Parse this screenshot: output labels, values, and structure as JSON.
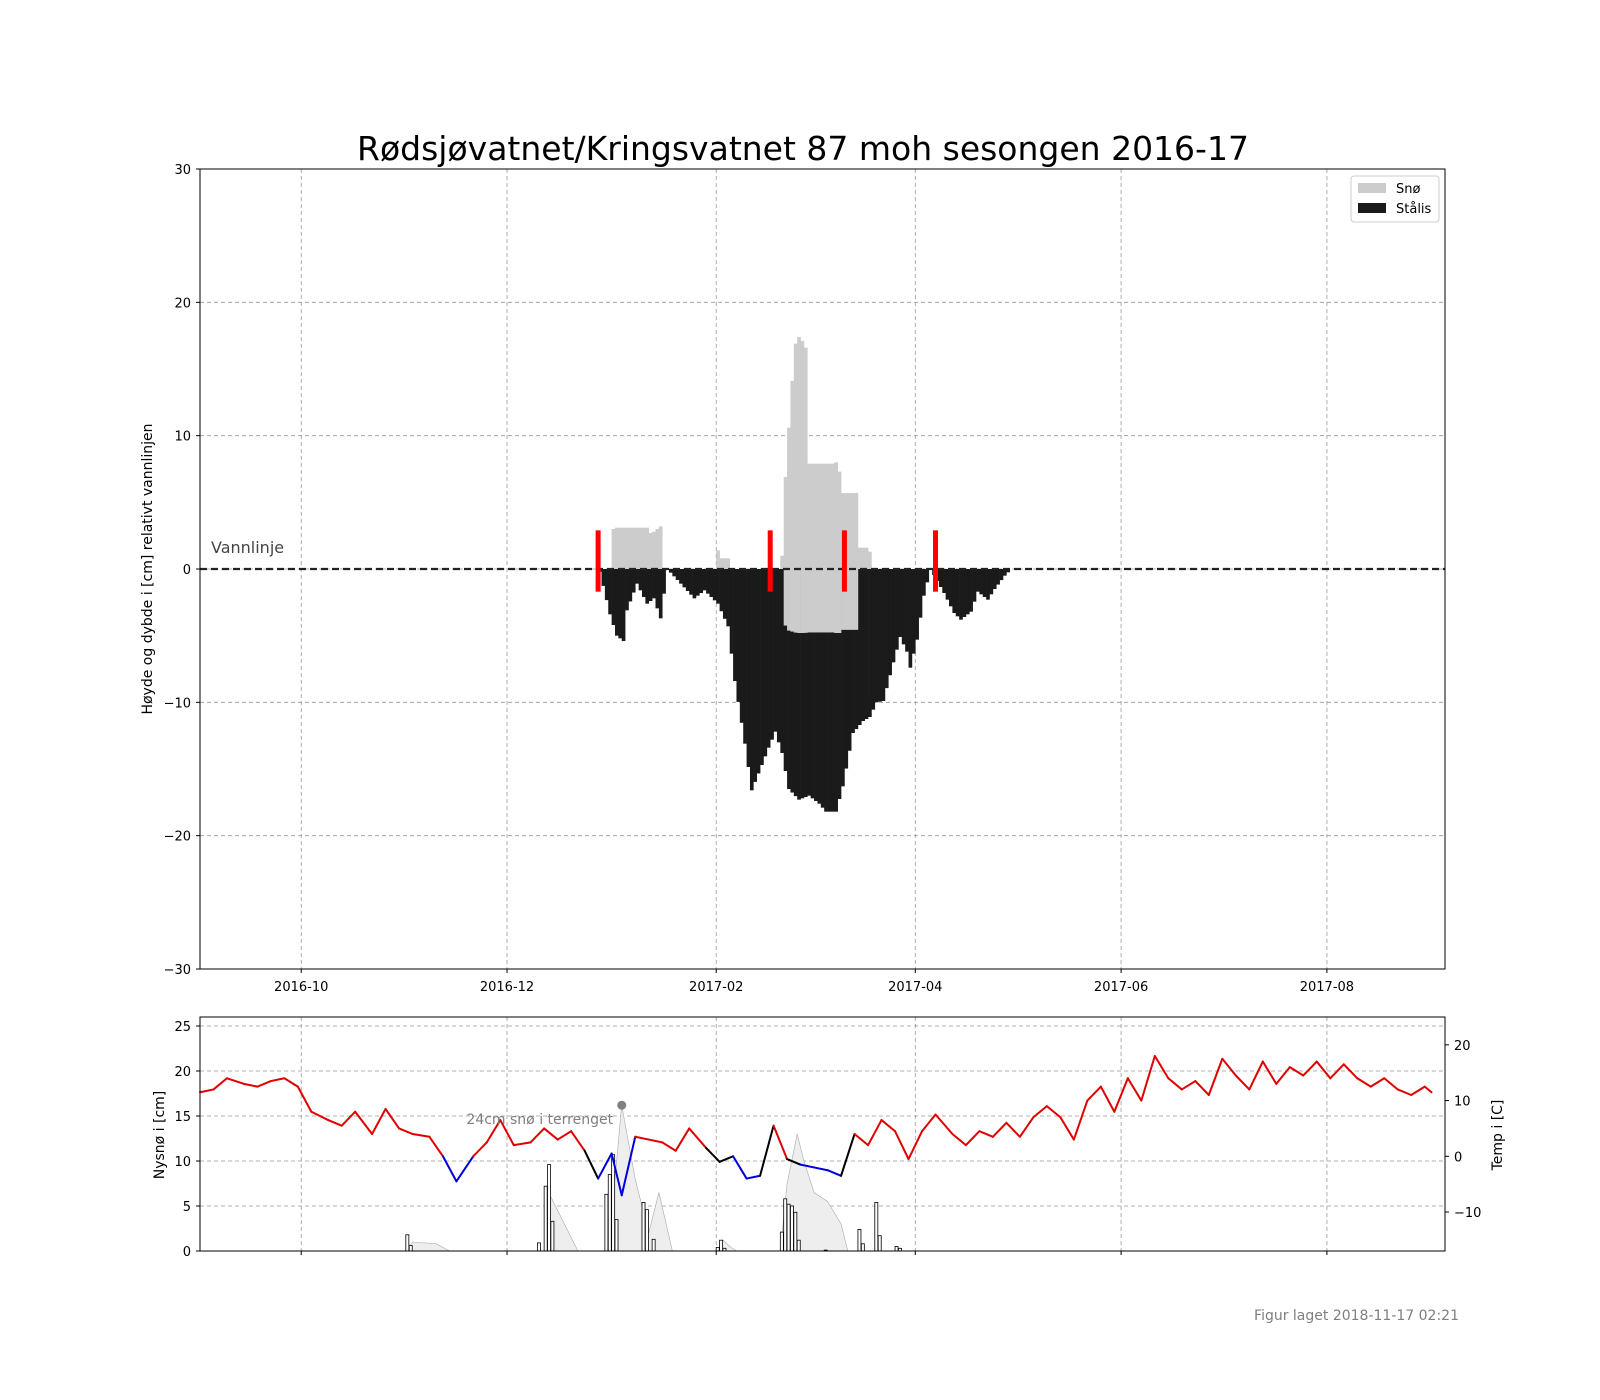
{
  "title": "Rødsjøvatnet/Kringsvatnet 87 moh sesongen 2016-17",
  "footer": "Figur laget 2018-11-17 02:21",
  "colors": {
    "snow": "#cccccc",
    "ice": "#1a1a1a",
    "obs": "#ff0000",
    "temp_warm": "#e00000",
    "temp_cold": "#0000dd",
    "temp_neutral": "#000000",
    "grid": "#999999"
  },
  "chart_data": [
    {
      "type": "bar",
      "ylabel": "Høyde og dybde i [cm] relativt vannlinjen",
      "ylim": [
        -30,
        30
      ],
      "yticks": [
        -30,
        -20,
        -10,
        0,
        10,
        20,
        30
      ],
      "ytick_labels": [
        "−30",
        "−20",
        "−10",
        "0",
        "10",
        "20",
        "30"
      ],
      "xlim": [
        "2016-09-01",
        "2017-09-05"
      ],
      "xticks": [
        "2016-10-01",
        "2016-12-01",
        "2017-02-01",
        "2017-04-01",
        "2017-06-01",
        "2017-08-01"
      ],
      "xtick_labels": [
        "2016-10",
        "2016-12",
        "2017-02",
        "2017-04",
        "2017-06",
        "2017-08"
      ],
      "grid": true,
      "legend_position": "top-right",
      "legend": [
        "Snø",
        "Stålis"
      ],
      "waterline_label": "Vannlinje",
      "observation_dates": [
        "2016-12-28",
        "2017-02-17",
        "2017-03-11",
        "2017-04-07"
      ],
      "observation_range": [
        -1.7,
        2.9
      ],
      "snow_cm": [
        [
          "2017-01-01",
          3.0
        ],
        [
          "2017-01-02",
          3.1
        ],
        [
          "2017-01-03",
          3.1
        ],
        [
          "2017-01-04",
          3.1
        ],
        [
          "2017-01-12",
          2.7
        ],
        [
          "2017-01-13",
          2.8
        ],
        [
          "2017-01-14",
          3.0
        ],
        [
          "2017-01-15",
          3.2
        ],
        [
          "2017-02-01",
          1.4
        ],
        [
          "2017-02-02",
          0.8
        ],
        [
          "2017-02-03",
          0.8
        ],
        [
          "2017-02-04",
          0.8
        ],
        [
          "2017-02-20",
          1.0
        ],
        [
          "2017-02-21",
          6.9
        ],
        [
          "2017-02-22",
          10.6
        ],
        [
          "2017-02-23",
          14.1
        ],
        [
          "2017-02-24",
          16.9
        ],
        [
          "2017-02-25",
          17.4
        ],
        [
          "2017-02-26",
          17.1
        ],
        [
          "2017-02-27",
          16.6
        ],
        [
          "2017-02-28",
          7.9
        ],
        [
          "2017-03-08",
          8.0
        ],
        [
          "2017-03-09",
          7.3
        ],
        [
          "2017-03-10",
          5.7
        ],
        [
          "2017-03-15",
          1.6
        ],
        [
          "2017-03-18",
          1.3
        ]
      ],
      "ice_cm": [
        [
          "2016-12-28",
          0.2
        ],
        [
          "2016-12-31",
          3.4
        ],
        [
          "2017-01-02",
          5.0
        ],
        [
          "2017-01-04",
          5.4
        ],
        [
          "2017-01-05",
          3.1
        ],
        [
          "2017-01-08",
          1.1
        ],
        [
          "2017-01-11",
          2.6
        ],
        [
          "2017-01-13",
          2.2
        ],
        [
          "2017-01-15",
          3.7
        ],
        [
          "2017-01-17",
          0.0
        ],
        [
          "2017-01-25",
          2.2
        ],
        [
          "2017-01-28",
          1.6
        ],
        [
          "2017-02-01",
          2.6
        ],
        [
          "2017-02-04",
          4.3
        ],
        [
          "2017-02-06",
          8.4
        ],
        [
          "2017-02-09",
          13.1
        ],
        [
          "2017-02-11",
          16.6
        ],
        [
          "2017-02-14",
          14.7
        ],
        [
          "2017-02-16",
          13.4
        ],
        [
          "2017-02-18",
          12.2
        ],
        [
          "2017-02-20",
          13.8
        ],
        [
          "2017-02-22",
          16.5
        ],
        [
          "2017-02-25",
          17.3
        ],
        [
          "2017-02-28",
          17.0
        ],
        [
          "2017-03-03",
          17.6
        ],
        [
          "2017-03-05",
          18.2
        ],
        [
          "2017-03-08",
          18.2
        ],
        [
          "2017-03-10",
          16.3
        ],
        [
          "2017-03-13",
          12.3
        ],
        [
          "2017-03-16",
          11.4
        ],
        [
          "2017-03-18",
          11.1
        ],
        [
          "2017-03-20",
          10.0
        ],
        [
          "2017-03-22",
          9.9
        ],
        [
          "2017-03-25",
          7.0
        ],
        [
          "2017-03-27",
          5.1
        ],
        [
          "2017-03-29",
          6.2
        ],
        [
          "2017-03-30",
          7.4
        ],
        [
          "2017-04-01",
          5.3
        ],
        [
          "2017-04-03",
          2.0
        ],
        [
          "2017-04-05",
          0.0
        ],
        [
          "2017-04-09",
          1.8
        ],
        [
          "2017-04-12",
          3.3
        ],
        [
          "2017-04-14",
          3.8
        ],
        [
          "2017-04-17",
          3.2
        ],
        [
          "2017-04-19",
          1.7
        ],
        [
          "2017-04-22",
          2.3
        ],
        [
          "2017-04-24",
          1.5
        ],
        [
          "2017-04-27",
          0.5
        ],
        [
          "2017-04-29",
          0.0
        ]
      ]
    },
    {
      "type": "bar",
      "ylabel": "Nysnø i [cm]",
      "ylabel_right": "Temp i [C]",
      "ylim": [
        0,
        26
      ],
      "yticks": [
        0,
        5,
        10,
        15,
        20,
        25
      ],
      "ytick_labels": [
        "0",
        "5",
        "10",
        "15",
        "20",
        "25"
      ],
      "ylim_right": [
        -17,
        25
      ],
      "yticks_right": [
        -10,
        0,
        10,
        20
      ],
      "ytick_labels_right": [
        "−10",
        "0",
        "10",
        "20"
      ],
      "grid": true,
      "annotation": "24cm snø i terrenget",
      "annotation_date": "2017-01-04",
      "annotation_value": 16.2,
      "new_snow_cm": [
        [
          "2016-11-01",
          1.8
        ],
        [
          "2016-11-02",
          0.6
        ],
        [
          "2016-12-10",
          0.9
        ],
        [
          "2016-12-12",
          7.2
        ],
        [
          "2016-12-13",
          9.6
        ],
        [
          "2016-12-14",
          3.3
        ],
        [
          "2016-12-30",
          6.3
        ],
        [
          "2016-12-31",
          8.5
        ],
        [
          "2017-01-01",
          10.7
        ],
        [
          "2017-01-02",
          3.5
        ],
        [
          "2017-01-10",
          5.4
        ],
        [
          "2017-01-11",
          4.6
        ],
        [
          "2017-01-13",
          1.3
        ],
        [
          "2017-02-01",
          0.4
        ],
        [
          "2017-02-02",
          1.2
        ],
        [
          "2017-02-03",
          0.3
        ],
        [
          "2017-02-20",
          2.1
        ],
        [
          "2017-02-21",
          5.8
        ],
        [
          "2017-02-22",
          5.2
        ],
        [
          "2017-02-23",
          5.0
        ],
        [
          "2017-02-24",
          4.3
        ],
        [
          "2017-02-25",
          1.2
        ],
        [
          "2017-03-05",
          0.1
        ],
        [
          "2017-03-15",
          2.4
        ],
        [
          "2017-03-16",
          0.8
        ],
        [
          "2017-03-20",
          5.4
        ],
        [
          "2017-03-21",
          1.7
        ],
        [
          "2017-03-26",
          0.5
        ],
        [
          "2017-03-27",
          0.3
        ]
      ],
      "snow_depth_cm": [
        [
          "2016-11-01",
          0.0
        ],
        [
          "2016-11-03",
          1.0
        ],
        [
          "2016-11-10",
          0.8
        ],
        [
          "2016-11-14",
          0.0
        ],
        [
          "2016-12-12",
          0.0
        ],
        [
          "2016-12-14",
          6.0
        ],
        [
          "2016-12-18",
          3.0
        ],
        [
          "2016-12-22",
          0.0
        ],
        [
          "2016-12-30",
          0.0
        ],
        [
          "2017-01-02",
          8.0
        ],
        [
          "2017-01-04",
          16.2
        ],
        [
          "2017-01-08",
          8.0
        ],
        [
          "2017-01-12",
          2.0
        ],
        [
          "2017-01-15",
          6.5
        ],
        [
          "2017-01-19",
          0.0
        ],
        [
          "2017-02-02",
          0.0
        ],
        [
          "2017-02-03",
          1.2
        ],
        [
          "2017-02-05",
          0.5
        ],
        [
          "2017-02-07",
          0.0
        ],
        [
          "2017-02-20",
          0.0
        ],
        [
          "2017-02-22",
          7.5
        ],
        [
          "2017-02-25",
          13.0
        ],
        [
          "2017-02-27",
          10.0
        ],
        [
          "2017-03-02",
          6.5
        ],
        [
          "2017-03-06",
          5.5
        ],
        [
          "2017-03-10",
          3.0
        ],
        [
          "2017-03-12",
          0.0
        ]
      ],
      "temperature_c": [
        [
          "2016-09-01",
          11.5
        ],
        [
          "2016-09-05",
          12.0
        ],
        [
          "2016-09-09",
          14.0
        ],
        [
          "2016-09-14",
          13.0
        ],
        [
          "2016-09-18",
          12.5
        ],
        [
          "2016-09-22",
          13.5
        ],
        [
          "2016-09-26",
          14.0
        ],
        [
          "2016-09-30",
          12.5
        ],
        [
          "2016-10-04",
          8.0
        ],
        [
          "2016-10-09",
          6.5
        ],
        [
          "2016-10-13",
          5.5
        ],
        [
          "2016-10-17",
          8.0
        ],
        [
          "2016-10-22",
          4.0
        ],
        [
          "2016-10-26",
          8.5
        ],
        [
          "2016-10-30",
          5.0
        ],
        [
          "2016-11-03",
          4.0
        ],
        [
          "2016-11-08",
          3.5
        ],
        [
          "2016-11-12",
          0.0
        ],
        [
          "2016-11-16",
          -4.5
        ],
        [
          "2016-11-21",
          0.0
        ],
        [
          "2016-11-25",
          2.5
        ],
        [
          "2016-11-29",
          6.5
        ],
        [
          "2016-12-03",
          2.0
        ],
        [
          "2016-12-08",
          2.5
        ],
        [
          "2016-12-12",
          5.0
        ],
        [
          "2016-12-16",
          3.0
        ],
        [
          "2016-12-20",
          4.5
        ],
        [
          "2016-12-24",
          1.0
        ],
        [
          "2016-12-28",
          -4.0
        ],
        [
          "2017-01-01",
          0.5
        ],
        [
          "2017-01-04",
          -7.0
        ],
        [
          "2017-01-08",
          3.5
        ],
        [
          "2017-01-12",
          3.0
        ],
        [
          "2017-01-16",
          2.5
        ],
        [
          "2017-01-20",
          1.0
        ],
        [
          "2017-01-24",
          5.0
        ],
        [
          "2017-01-29",
          1.5
        ],
        [
          "2017-02-02",
          -1.0
        ],
        [
          "2017-02-06",
          0.0
        ],
        [
          "2017-02-10",
          -4.0
        ],
        [
          "2017-02-14",
          -3.5
        ],
        [
          "2017-02-18",
          5.5
        ],
        [
          "2017-02-22",
          -0.5
        ],
        [
          "2017-02-26",
          -1.5
        ],
        [
          "2017-03-02",
          -2.0
        ],
        [
          "2017-03-06",
          -2.5
        ],
        [
          "2017-03-10",
          -3.5
        ],
        [
          "2017-03-14",
          4.0
        ],
        [
          "2017-03-18",
          2.0
        ],
        [
          "2017-03-22",
          6.5
        ],
        [
          "2017-03-26",
          4.5
        ],
        [
          "2017-03-30",
          -0.5
        ],
        [
          "2017-04-03",
          4.5
        ],
        [
          "2017-04-07",
          7.5
        ],
        [
          "2017-04-12",
          4.0
        ],
        [
          "2017-04-16",
          2.0
        ],
        [
          "2017-04-20",
          4.5
        ],
        [
          "2017-04-24",
          3.5
        ],
        [
          "2017-04-28",
          6.0
        ],
        [
          "2017-05-02",
          3.5
        ],
        [
          "2017-05-06",
          7.0
        ],
        [
          "2017-05-10",
          9.0
        ],
        [
          "2017-05-14",
          7.0
        ],
        [
          "2017-05-18",
          3.0
        ],
        [
          "2017-05-22",
          10.0
        ],
        [
          "2017-05-26",
          12.5
        ],
        [
          "2017-05-30",
          8.0
        ],
        [
          "2017-06-03",
          14.0
        ],
        [
          "2017-06-07",
          10.0
        ],
        [
          "2017-06-11",
          18.0
        ],
        [
          "2017-06-15",
          14.0
        ],
        [
          "2017-06-19",
          12.0
        ],
        [
          "2017-06-23",
          13.5
        ],
        [
          "2017-06-27",
          11.0
        ],
        [
          "2017-07-01",
          17.5
        ],
        [
          "2017-07-05",
          14.5
        ],
        [
          "2017-07-09",
          12.0
        ],
        [
          "2017-07-13",
          17.0
        ],
        [
          "2017-07-17",
          13.0
        ],
        [
          "2017-07-21",
          16.0
        ],
        [
          "2017-07-25",
          14.5
        ],
        [
          "2017-07-29",
          17.0
        ],
        [
          "2017-08-02",
          14.0
        ],
        [
          "2017-08-06",
          16.5
        ],
        [
          "2017-08-10",
          14.0
        ],
        [
          "2017-08-14",
          12.5
        ],
        [
          "2017-08-18",
          14.0
        ],
        [
          "2017-08-22",
          12.0
        ],
        [
          "2017-08-26",
          11.0
        ],
        [
          "2017-08-30",
          12.5
        ],
        [
          "2017-09-01",
          11.5
        ]
      ]
    }
  ]
}
